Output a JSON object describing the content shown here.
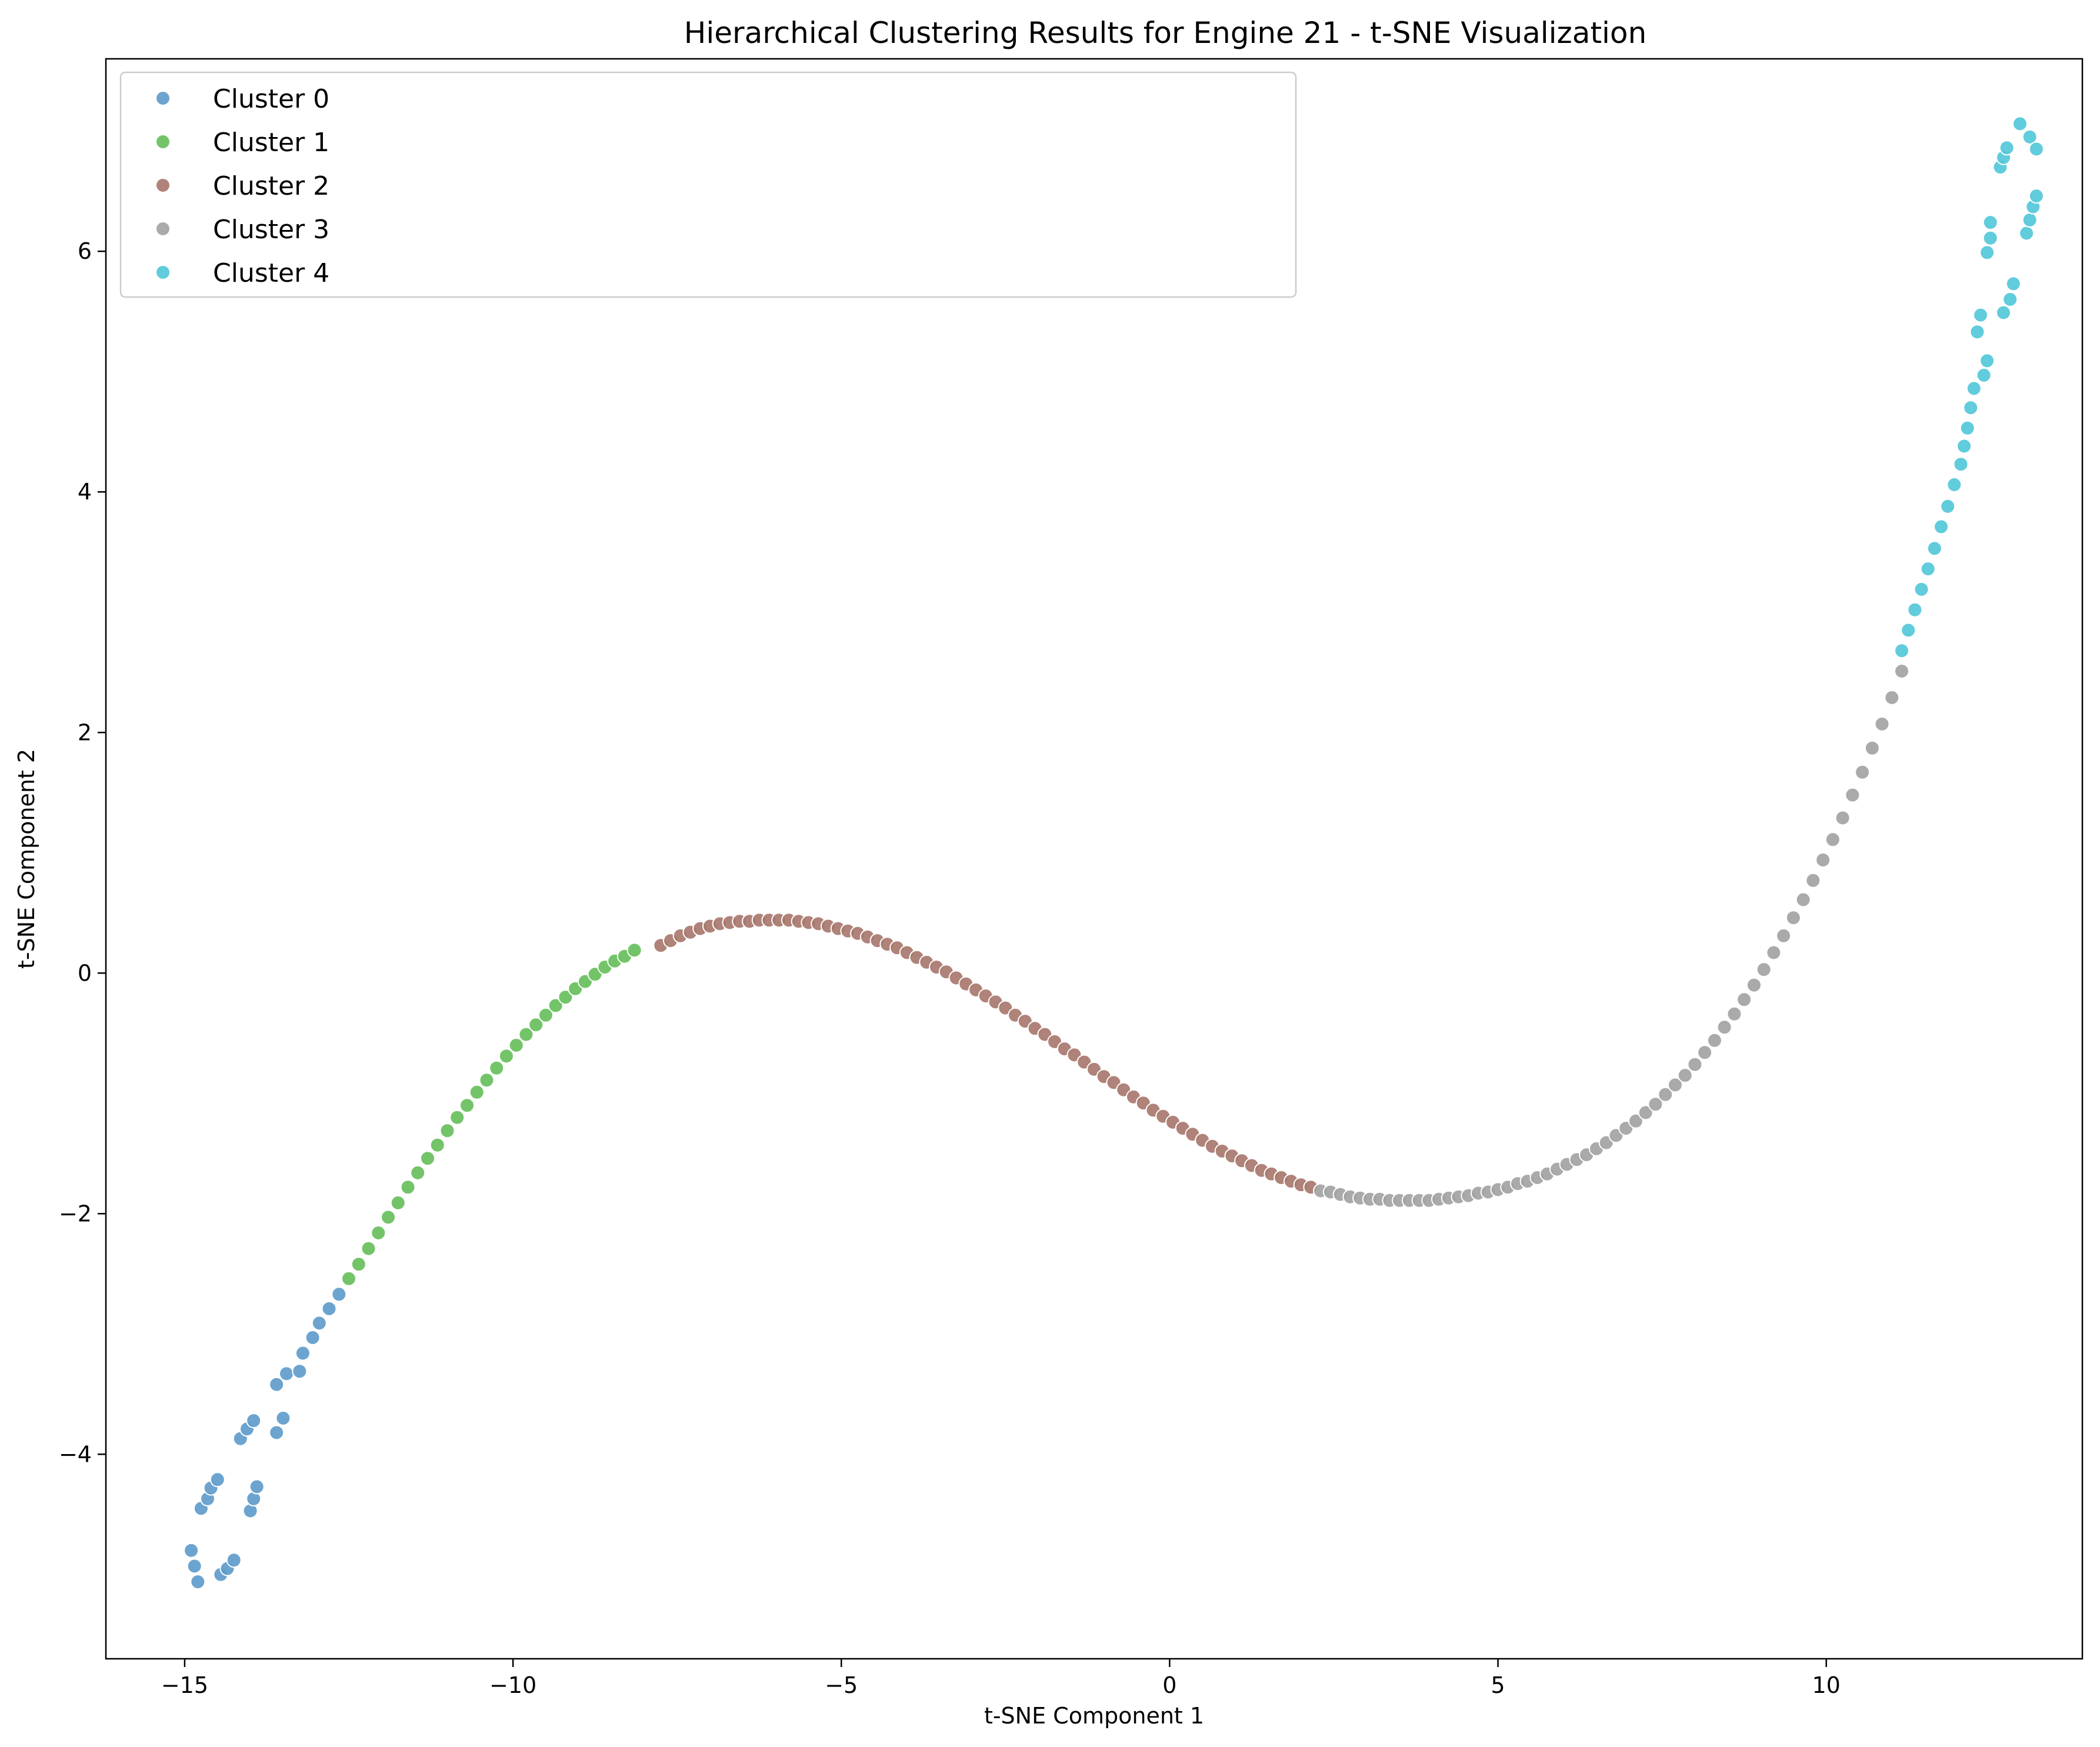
{
  "chart_data": {
    "type": "scatter",
    "title": "Hierarchical Clustering Results for Engine 21 - t-SNE Visualization",
    "xlabel": "t-SNE Component 1",
    "ylabel": "t-SNE Component 2",
    "xlim": [
      -16.2,
      13.9
    ],
    "ylim": [
      -5.7,
      7.6
    ],
    "xticks": [
      -15,
      -10,
      -5,
      0,
      5,
      10
    ],
    "xtick_labels": [
      "−15",
      "−10",
      "−5",
      "0",
      "5",
      "10"
    ],
    "yticks": [
      -4,
      -2,
      0,
      2,
      4,
      6
    ],
    "ytick_labels": [
      "−4",
      "−2",
      "0",
      "2",
      "4",
      "6"
    ],
    "grid": false,
    "legend_position": "top-left",
    "series": [
      {
        "name": "Cluster 0",
        "color": "#5f9ccb",
        "points": [
          [
            -14.9,
            -4.8
          ],
          [
            -14.85,
            -4.93
          ],
          [
            -14.8,
            -5.06
          ],
          [
            -14.75,
            -4.45
          ],
          [
            -14.65,
            -4.37
          ],
          [
            -14.6,
            -4.28
          ],
          [
            -14.5,
            -4.21
          ],
          [
            -14.45,
            -5.0
          ],
          [
            -14.35,
            -4.95
          ],
          [
            -14.25,
            -4.88
          ],
          [
            -14.15,
            -3.87
          ],
          [
            -14.05,
            -3.79
          ],
          [
            -14.0,
            -4.47
          ],
          [
            -13.95,
            -3.72
          ],
          [
            -13.95,
            -4.37
          ],
          [
            -13.9,
            -4.27
          ],
          [
            -13.6,
            -3.42
          ],
          [
            -13.6,
            -3.82
          ],
          [
            -13.5,
            -3.7
          ],
          [
            -13.45,
            -3.33
          ],
          [
            -13.25,
            -3.31
          ],
          [
            -13.2,
            -3.16
          ],
          [
            -13.05,
            -3.03
          ],
          [
            -12.95,
            -2.91
          ],
          [
            -12.8,
            -2.79
          ],
          [
            -12.65,
            -2.67
          ]
        ]
      },
      {
        "name": "Cluster 1",
        "color": "#67bf5c",
        "points": [
          [
            -12.5,
            -2.54
          ],
          [
            -12.35,
            -2.42
          ],
          [
            -12.2,
            -2.29
          ],
          [
            -12.05,
            -2.16
          ],
          [
            -11.9,
            -2.03
          ],
          [
            -11.75,
            -1.91
          ],
          [
            -11.6,
            -1.78
          ],
          [
            -11.45,
            -1.66
          ],
          [
            -11.3,
            -1.54
          ],
          [
            -11.15,
            -1.43
          ],
          [
            -11.0,
            -1.31
          ],
          [
            -10.85,
            -1.2
          ],
          [
            -10.7,
            -1.1
          ],
          [
            -10.55,
            -0.99
          ],
          [
            -10.4,
            -0.89
          ],
          [
            -10.25,
            -0.79
          ],
          [
            -10.1,
            -0.69
          ],
          [
            -9.95,
            -0.6
          ],
          [
            -9.8,
            -0.51
          ],
          [
            -9.65,
            -0.43
          ],
          [
            -9.5,
            -0.35
          ],
          [
            -9.35,
            -0.27
          ],
          [
            -9.2,
            -0.2
          ],
          [
            -9.05,
            -0.13
          ],
          [
            -8.9,
            -0.07
          ],
          [
            -8.75,
            -0.01
          ],
          [
            -8.6,
            0.05
          ],
          [
            -8.45,
            0.1
          ],
          [
            -8.3,
            0.14
          ],
          [
            -8.15,
            0.19
          ]
        ]
      },
      {
        "name": "Cluster 2",
        "color": "#a8786e",
        "points": [
          [
            -7.75,
            0.23
          ],
          [
            -7.6,
            0.27
          ],
          [
            -7.45,
            0.31
          ],
          [
            -7.3,
            0.34
          ],
          [
            -7.15,
            0.37
          ],
          [
            -7.0,
            0.39
          ],
          [
            -6.85,
            0.41
          ],
          [
            -6.7,
            0.42
          ],
          [
            -6.55,
            0.43
          ],
          [
            -6.4,
            0.43
          ],
          [
            -6.25,
            0.44
          ],
          [
            -6.1,
            0.44
          ],
          [
            -5.95,
            0.44
          ],
          [
            -5.8,
            0.44
          ],
          [
            -5.65,
            0.43
          ],
          [
            -5.5,
            0.42
          ],
          [
            -5.35,
            0.41
          ],
          [
            -5.2,
            0.39
          ],
          [
            -5.05,
            0.37
          ],
          [
            -4.9,
            0.35
          ],
          [
            -4.75,
            0.33
          ],
          [
            -4.6,
            0.3
          ],
          [
            -4.45,
            0.27
          ],
          [
            -4.3,
            0.24
          ],
          [
            -4.15,
            0.21
          ],
          [
            -4.0,
            0.17
          ],
          [
            -3.85,
            0.13
          ],
          [
            -3.7,
            0.09
          ],
          [
            -3.55,
            0.05
          ],
          [
            -3.4,
            0.01
          ],
          [
            -3.25,
            -0.04
          ],
          [
            -3.1,
            -0.09
          ],
          [
            -2.95,
            -0.14
          ],
          [
            -2.8,
            -0.19
          ],
          [
            -2.65,
            -0.24
          ],
          [
            -2.5,
            -0.29
          ],
          [
            -2.35,
            -0.35
          ],
          [
            -2.2,
            -0.4
          ],
          [
            -2.05,
            -0.46
          ],
          [
            -1.9,
            -0.51
          ],
          [
            -1.75,
            -0.57
          ],
          [
            -1.6,
            -0.63
          ],
          [
            -1.45,
            -0.68
          ],
          [
            -1.3,
            -0.74
          ],
          [
            -1.15,
            -0.8
          ],
          [
            -1.0,
            -0.86
          ],
          [
            -0.85,
            -0.91
          ],
          [
            -0.7,
            -0.97
          ],
          [
            -0.55,
            -1.03
          ],
          [
            -0.4,
            -1.08
          ],
          [
            -0.25,
            -1.14
          ],
          [
            -0.1,
            -1.19
          ],
          [
            0.05,
            -1.24
          ],
          [
            0.2,
            -1.29
          ],
          [
            0.35,
            -1.34
          ],
          [
            0.5,
            -1.39
          ],
          [
            0.65,
            -1.44
          ],
          [
            0.8,
            -1.48
          ],
          [
            0.95,
            -1.52
          ],
          [
            1.1,
            -1.56
          ],
          [
            1.25,
            -1.6
          ],
          [
            1.4,
            -1.64
          ],
          [
            1.55,
            -1.67
          ],
          [
            1.7,
            -1.7
          ],
          [
            1.85,
            -1.73
          ],
          [
            2.0,
            -1.76
          ],
          [
            2.15,
            -1.78
          ]
        ]
      },
      {
        "name": "Cluster 3",
        "color": "#a3a3a3",
        "points": [
          [
            2.3,
            -1.81
          ],
          [
            2.45,
            -1.82
          ],
          [
            2.6,
            -1.84
          ],
          [
            2.75,
            -1.86
          ],
          [
            2.9,
            -1.87
          ],
          [
            3.05,
            -1.88
          ],
          [
            3.2,
            -1.88
          ],
          [
            3.35,
            -1.89
          ],
          [
            3.5,
            -1.89
          ],
          [
            3.65,
            -1.89
          ],
          [
            3.8,
            -1.89
          ],
          [
            3.95,
            -1.89
          ],
          [
            4.1,
            -1.88
          ],
          [
            4.25,
            -1.87
          ],
          [
            4.4,
            -1.86
          ],
          [
            4.55,
            -1.85
          ],
          [
            4.7,
            -1.83
          ],
          [
            4.85,
            -1.82
          ],
          [
            5.0,
            -1.8
          ],
          [
            5.15,
            -1.78
          ],
          [
            5.3,
            -1.75
          ],
          [
            5.45,
            -1.73
          ],
          [
            5.6,
            -1.7
          ],
          [
            5.75,
            -1.67
          ],
          [
            5.9,
            -1.63
          ],
          [
            6.05,
            -1.59
          ],
          [
            6.2,
            -1.55
          ],
          [
            6.35,
            -1.51
          ],
          [
            6.5,
            -1.46
          ],
          [
            6.65,
            -1.41
          ],
          [
            6.8,
            -1.35
          ],
          [
            6.95,
            -1.29
          ],
          [
            7.1,
            -1.23
          ],
          [
            7.25,
            -1.16
          ],
          [
            7.4,
            -1.09
          ],
          [
            7.55,
            -1.01
          ],
          [
            7.7,
            -0.93
          ],
          [
            7.85,
            -0.85
          ],
          [
            8.0,
            -0.76
          ],
          [
            8.15,
            -0.66
          ],
          [
            8.3,
            -0.56
          ],
          [
            8.45,
            -0.45
          ],
          [
            8.6,
            -0.34
          ],
          [
            8.75,
            -0.22
          ],
          [
            8.9,
            -0.1
          ],
          [
            9.05,
            0.03
          ],
          [
            9.2,
            0.17
          ],
          [
            9.35,
            0.31
          ],
          [
            9.5,
            0.46
          ],
          [
            9.65,
            0.61
          ],
          [
            9.8,
            0.77
          ],
          [
            9.95,
            0.94
          ],
          [
            10.1,
            1.11
          ],
          [
            10.25,
            1.29
          ],
          [
            10.4,
            1.48
          ],
          [
            10.55,
            1.67
          ],
          [
            10.7,
            1.87
          ],
          [
            10.85,
            2.07
          ],
          [
            11.0,
            2.29
          ],
          [
            11.15,
            2.51
          ]
        ]
      },
      {
        "name": "Cluster 4",
        "color": "#52c8d9",
        "points": [
          [
            11.15,
            2.68
          ],
          [
            11.25,
            2.85
          ],
          [
            11.35,
            3.02
          ],
          [
            11.45,
            3.19
          ],
          [
            11.55,
            3.36
          ],
          [
            11.65,
            3.53
          ],
          [
            11.75,
            3.71
          ],
          [
            11.85,
            3.88
          ],
          [
            11.95,
            4.06
          ],
          [
            12.05,
            4.23
          ],
          [
            12.1,
            4.38
          ],
          [
            12.15,
            4.53
          ],
          [
            12.2,
            4.7
          ],
          [
            12.25,
            4.86
          ],
          [
            12.4,
            4.97
          ],
          [
            12.45,
            5.09
          ],
          [
            12.3,
            5.33
          ],
          [
            12.35,
            5.47
          ],
          [
            12.7,
            5.49
          ],
          [
            12.8,
            5.6
          ],
          [
            12.85,
            5.73
          ],
          [
            12.45,
            5.99
          ],
          [
            12.5,
            6.11
          ],
          [
            12.5,
            6.24
          ],
          [
            13.05,
            6.15
          ],
          [
            13.1,
            6.26
          ],
          [
            13.15,
            6.37
          ],
          [
            13.2,
            6.46
          ],
          [
            12.65,
            6.7
          ],
          [
            12.7,
            6.78
          ],
          [
            12.75,
            6.86
          ],
          [
            12.95,
            7.06
          ],
          [
            13.1,
            6.95
          ],
          [
            13.2,
            6.85
          ]
        ]
      }
    ]
  }
}
